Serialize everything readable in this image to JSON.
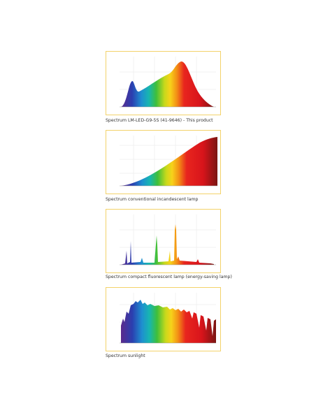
{
  "panels": [
    {
      "caption": "Spectrum LM-LED-G9-5S (41-9646) - This product"
    },
    {
      "caption": "Spectrum conventional incandescent lamp"
    },
    {
      "caption": "Spectrum compact fluorescent lamp (energy-saving lamp)"
    },
    {
      "caption": "Spectrum sunlight"
    }
  ]
}
